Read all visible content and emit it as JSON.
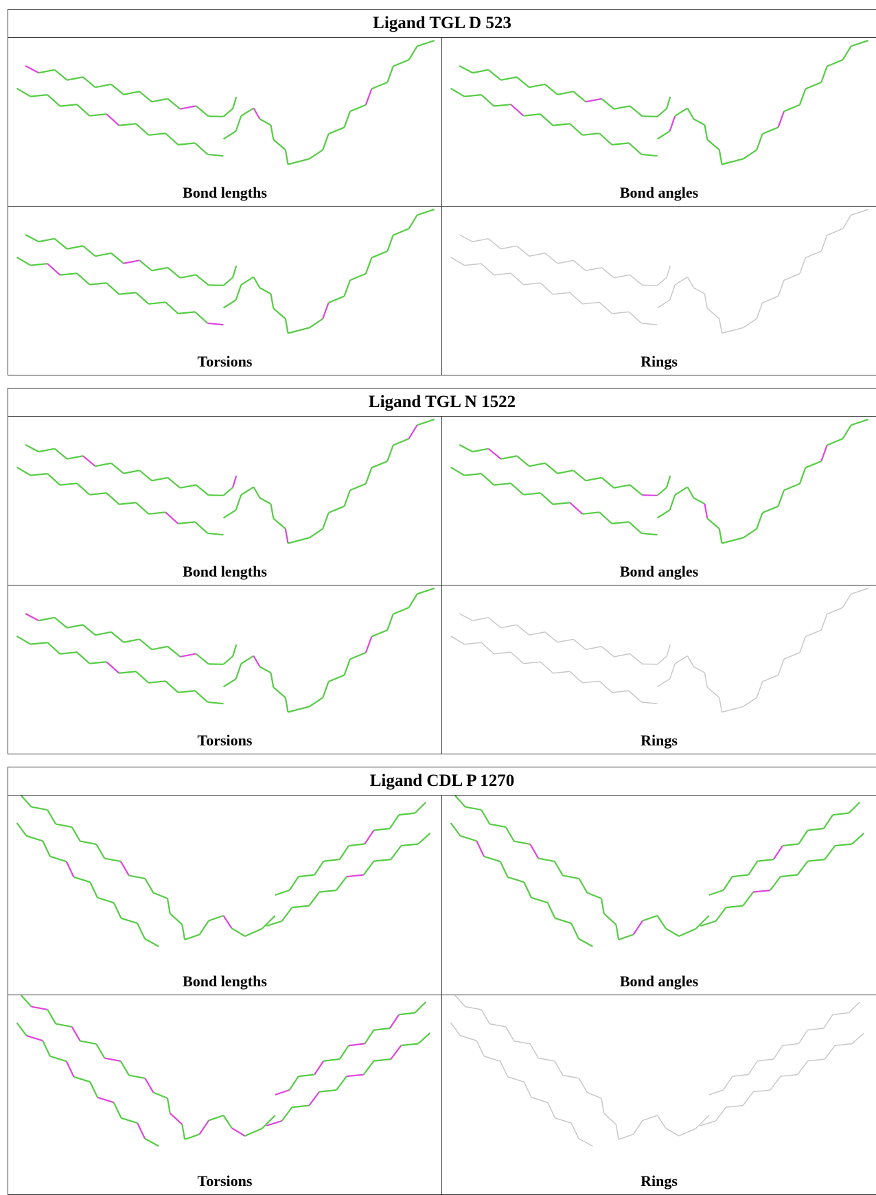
{
  "tables": [
    {
      "title": "Ligand TGL D 523",
      "panels": [
        "Bond lengths",
        "Bond angles",
        "Torsions",
        "Rings"
      ]
    },
    {
      "title": "Ligand TGL N 1522",
      "panels": [
        "Bond lengths",
        "Bond angles",
        "Torsions",
        "Rings"
      ]
    },
    {
      "title": "Ligand CDL P 1270",
      "panels": [
        "Bond lengths",
        "Bond angles",
        "Torsions",
        "Rings"
      ]
    }
  ]
}
